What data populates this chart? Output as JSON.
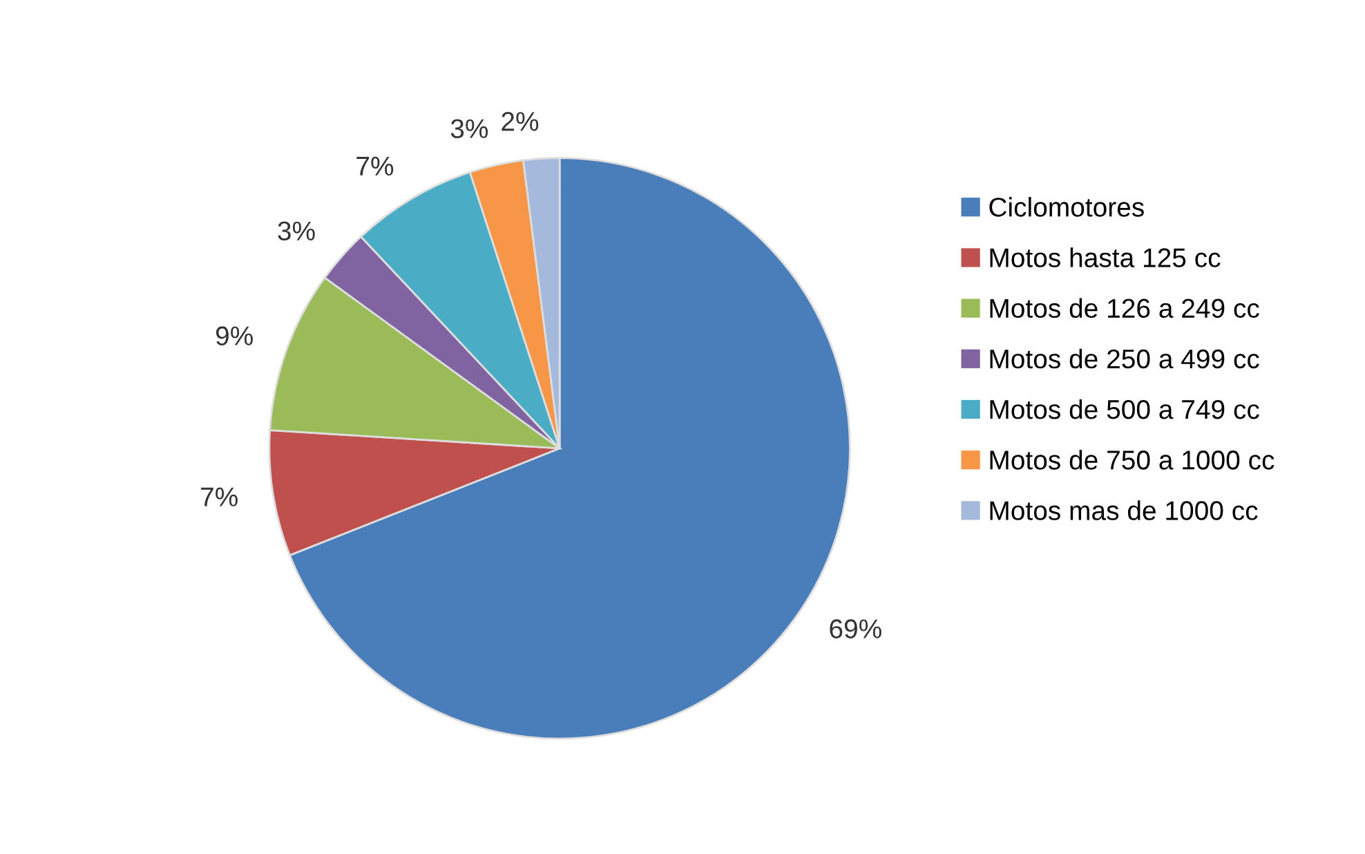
{
  "chart_data": {
    "type": "pie",
    "categories": [
      "Ciclomotores",
      "Motos hasta 125 cc",
      "Motos de 126 a 249 cc",
      "Motos de 250 a 499 cc",
      "Motos de 500 a 749 cc",
      "Motos de 750 a 1000 cc",
      "Motos mas de 1000 cc"
    ],
    "values": [
      69,
      7,
      9,
      3,
      7,
      3,
      2
    ],
    "value_labels": [
      "69%",
      "7%",
      "9%",
      "3%",
      "7%",
      "3%",
      "2%"
    ],
    "colors": [
      "#4a7ebb",
      "#c0504d",
      "#9bbb59",
      "#8064a2",
      "#4bacc6",
      "#f79646",
      "#a5b9dc"
    ],
    "legend": "right"
  }
}
